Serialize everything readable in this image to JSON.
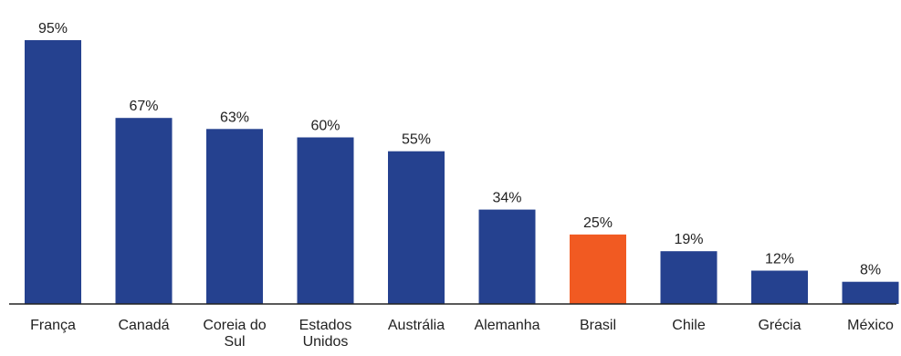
{
  "chart_data": {
    "type": "bar",
    "categories": [
      "França",
      "Canadá",
      "Coreia do Sul",
      "Estados Unidos",
      "Austrália",
      "Alemanha",
      "Brasil",
      "Chile",
      "Grécia",
      "México"
    ],
    "category_lines": [
      [
        "França"
      ],
      [
        "Canadá"
      ],
      [
        "Coreia do",
        "Sul"
      ],
      [
        "Estados",
        "Unidos"
      ],
      [
        "Austrália"
      ],
      [
        "Alemanha"
      ],
      [
        "Brasil"
      ],
      [
        "Chile"
      ],
      [
        "Grécia"
      ],
      [
        "México"
      ]
    ],
    "values": [
      95,
      67,
      63,
      60,
      55,
      34,
      25,
      19,
      12,
      8
    ],
    "value_labels": [
      "95%",
      "67%",
      "63%",
      "60%",
      "55%",
      "34%",
      "25%",
      "19%",
      "12%",
      "8%"
    ],
    "unit": "%",
    "ylim": [
      0,
      95
    ],
    "colors": {
      "default": "#25418f",
      "highlight": "#f15a22",
      "highlight_category": "Brasil"
    },
    "grid": false,
    "legend": "none"
  }
}
